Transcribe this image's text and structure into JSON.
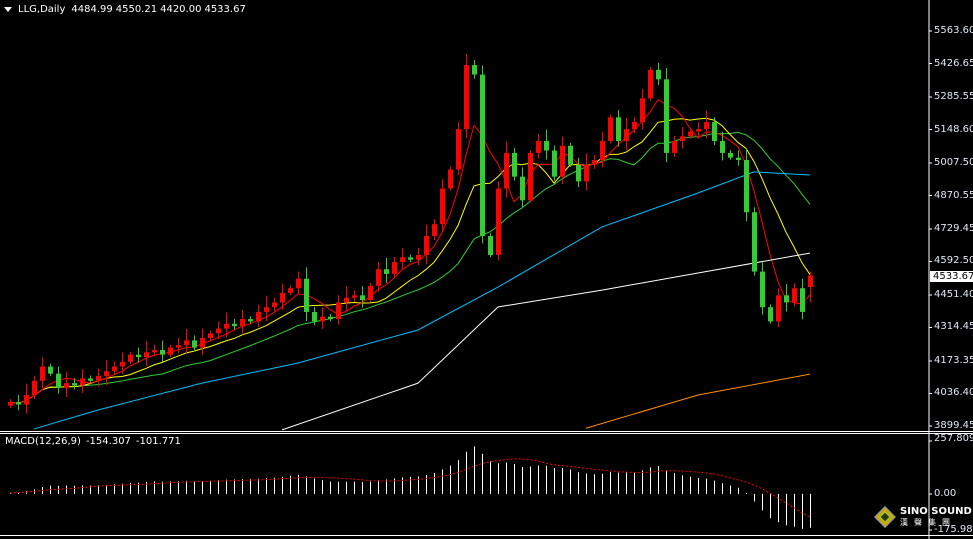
{
  "header": {
    "symbol": "LLG,Daily",
    "open": "4484.99",
    "high": "4550.21",
    "low": "4420.00",
    "close": "4533.67"
  },
  "macd_header": {
    "label": "MACD(12,26,9)",
    "main": "-154.307",
    "signal": "-101.771"
  },
  "price_axis": [
    "5563.60",
    "5426.65",
    "5285.55",
    "5148.60",
    "5007.50",
    "4870.55",
    "4729.45",
    "4592.50",
    "4451.40",
    "4314.45",
    "4173.35",
    "4036.40",
    "3899.45"
  ],
  "current_price": "4533.67",
  "macd_axis": {
    "top": "257.809",
    "zero": "0.00",
    "bottom": "-175.983"
  },
  "logo": {
    "name": "SINO SOUND",
    "cn": "漢聲集團"
  },
  "colors": {
    "up": "#ff0000",
    "down": "#32cd32",
    "ma5": "#ff0000",
    "ma10": "#ffff00",
    "ma20": "#32cd32",
    "ma60": "#00bfff",
    "ma120": "#ffffff",
    "ma250": "#ff8c00",
    "macd": "#ffffff",
    "signal": "#ff0000"
  },
  "chart_data": {
    "type": "candlestick",
    "timeframe": "Daily",
    "ylim": [
      3899.45,
      5563.6
    ],
    "closes": [
      4000,
      3990,
      4030,
      4090,
      4150,
      4120,
      4060,
      4080,
      4070,
      4100,
      4090,
      4110,
      4130,
      4150,
      4170,
      4200,
      4190,
      4210,
      4220,
      4200,
      4230,
      4240,
      4260,
      4230,
      4270,
      4290,
      4310,
      4330,
      4320,
      4350,
      4340,
      4380,
      4400,
      4420,
      4460,
      4480,
      4520,
      4380,
      4340,
      4360,
      4350,
      4420,
      4440,
      4450,
      4430,
      4490,
      4560,
      4540,
      4590,
      4610,
      4600,
      4620,
      4700,
      4750,
      4900,
      4980,
      5150,
      5420,
      5380,
      4700,
      4620,
      4900,
      5050,
      4950,
      4850,
      5050,
      5100,
      5060,
      4950,
      5080,
      5000,
      4930,
      5000,
      5020,
      5100,
      5200,
      5100,
      5150,
      5180,
      5280,
      5400,
      5360,
      5050,
      5100,
      5120,
      5140,
      5150,
      5180,
      5100,
      5050,
      5030,
      5020,
      4800,
      4550,
      4400,
      4340,
      4450,
      4420,
      4480,
      4380,
      4533.67
    ],
    "moving_averages": {
      "ma60": [
        [
          3,
          3887
        ],
        [
          11,
          3967
        ],
        [
          24,
          4080
        ],
        [
          36,
          4165
        ],
        [
          51,
          4304
        ],
        [
          61,
          4485
        ],
        [
          74,
          4738
        ],
        [
          86,
          4881
        ],
        [
          93,
          4970
        ],
        [
          100,
          4957
        ]
      ],
      "ma120": [
        [
          34,
          3883
        ],
        [
          51,
          4080
        ],
        [
          61,
          4401
        ],
        [
          74,
          4472
        ],
        [
          86,
          4544
        ],
        [
          100,
          4628
        ]
      ],
      "ma250": [
        [
          72,
          3890
        ],
        [
          86,
          4030
        ],
        [
          100,
          4118
        ]
      ]
    },
    "macd_range": [
      -175.983,
      257.809
    ]
  }
}
